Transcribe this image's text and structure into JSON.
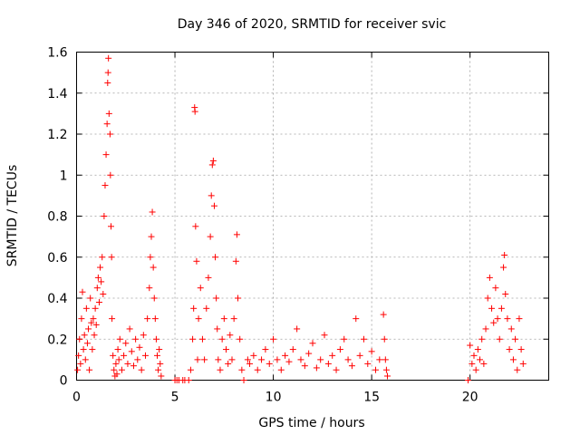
{
  "chart_data": {
    "type": "scatter",
    "title": "Day 346 of 2020, SRMTID for receiver svic",
    "xlabel": "GPS time / hours",
    "ylabel": "SRMTID / TECUs",
    "xlim": [
      0,
      24
    ],
    "ylim": [
      0,
      1.6
    ],
    "xticks": [
      0,
      5,
      10,
      15,
      20
    ],
    "xtick_labels": [
      "0",
      "5",
      "10",
      "15",
      "20"
    ],
    "yticks": [
      0,
      0.2,
      0.4,
      0.6,
      0.8,
      1.0,
      1.2,
      1.4,
      1.6
    ],
    "ytick_labels": [
      "0",
      "0.2",
      "0.4",
      "0.6",
      "0.8",
      "1",
      "1.2",
      "1.4",
      "1.6"
    ],
    "grid": true,
    "marker": "+",
    "marker_color": "#ff0000",
    "series": [
      {
        "name": "SRMTID",
        "points": [
          [
            0.05,
            0.05
          ],
          [
            0.1,
            0.12
          ],
          [
            0.15,
            0.2
          ],
          [
            0.2,
            0.08
          ],
          [
            0.25,
            0.3
          ],
          [
            0.3,
            0.43
          ],
          [
            0.35,
            0.15
          ],
          [
            0.4,
            0.22
          ],
          [
            0.45,
            0.1
          ],
          [
            0.5,
            0.35
          ],
          [
            0.55,
            0.18
          ],
          [
            0.6,
            0.25
          ],
          [
            0.65,
            0.05
          ],
          [
            0.7,
            0.4
          ],
          [
            0.75,
            0.28
          ],
          [
            0.8,
            0.15
          ],
          [
            0.85,
            0.3
          ],
          [
            0.9,
            0.22
          ],
          [
            0.95,
            0.35
          ],
          [
            1.0,
            0.27
          ],
          [
            1.05,
            0.45
          ],
          [
            1.1,
            0.5
          ],
          [
            1.15,
            0.38
          ],
          [
            1.2,
            0.55
          ],
          [
            1.25,
            0.48
          ],
          [
            1.3,
            0.6
          ],
          [
            1.35,
            0.42
          ],
          [
            1.4,
            0.8
          ],
          [
            1.45,
            0.95
          ],
          [
            1.5,
            1.1
          ],
          [
            1.55,
            1.25
          ],
          [
            1.58,
            1.45
          ],
          [
            1.6,
            1.5
          ],
          [
            1.62,
            1.57
          ],
          [
            1.65,
            1.3
          ],
          [
            1.7,
            1.2
          ],
          [
            1.72,
            1.0
          ],
          [
            1.75,
            0.75
          ],
          [
            1.78,
            0.6
          ],
          [
            1.8,
            0.3
          ],
          [
            1.85,
            0.12
          ],
          [
            1.9,
            0.05
          ],
          [
            1.95,
            0.02
          ],
          [
            2.0,
            0.08
          ],
          [
            2.05,
            0.03
          ],
          [
            2.1,
            0.15
          ],
          [
            2.15,
            0.1
          ],
          [
            2.2,
            0.2
          ],
          [
            2.3,
            0.05
          ],
          [
            2.4,
            0.12
          ],
          [
            2.5,
            0.18
          ],
          [
            2.6,
            0.08
          ],
          [
            2.7,
            0.25
          ],
          [
            2.8,
            0.14
          ],
          [
            2.9,
            0.07
          ],
          [
            3.0,
            0.2
          ],
          [
            3.1,
            0.1
          ],
          [
            3.2,
            0.16
          ],
          [
            3.3,
            0.05
          ],
          [
            3.4,
            0.22
          ],
          [
            3.5,
            0.12
          ],
          [
            3.6,
            0.3
          ],
          [
            3.7,
            0.45
          ],
          [
            3.75,
            0.6
          ],
          [
            3.8,
            0.7
          ],
          [
            3.85,
            0.82
          ],
          [
            3.9,
            0.55
          ],
          [
            3.95,
            0.4
          ],
          [
            4.0,
            0.3
          ],
          [
            4.05,
            0.2
          ],
          [
            4.1,
            0.12
          ],
          [
            4.15,
            0.05
          ],
          [
            4.2,
            0.15
          ],
          [
            4.25,
            0.08
          ],
          [
            4.3,
            0.02
          ],
          [
            5.0,
            0.0
          ],
          [
            5.1,
            0.0
          ],
          [
            5.2,
            0.0
          ],
          [
            5.4,
            0.0
          ],
          [
            5.5,
            0.0
          ],
          [
            5.7,
            0.0
          ],
          [
            5.8,
            0.05
          ],
          [
            5.9,
            0.2
          ],
          [
            5.95,
            0.35
          ],
          [
            6.0,
            1.33
          ],
          [
            6.02,
            1.31
          ],
          [
            6.05,
            0.75
          ],
          [
            6.1,
            0.58
          ],
          [
            6.15,
            0.1
          ],
          [
            6.2,
            0.3
          ],
          [
            6.3,
            0.45
          ],
          [
            6.4,
            0.2
          ],
          [
            6.5,
            0.1
          ],
          [
            6.6,
            0.35
          ],
          [
            6.7,
            0.5
          ],
          [
            6.8,
            0.7
          ],
          [
            6.85,
            0.9
          ],
          [
            6.9,
            1.05
          ],
          [
            6.95,
            1.07
          ],
          [
            7.0,
            0.85
          ],
          [
            7.05,
            0.6
          ],
          [
            7.1,
            0.4
          ],
          [
            7.15,
            0.25
          ],
          [
            7.2,
            0.1
          ],
          [
            7.3,
            0.05
          ],
          [
            7.4,
            0.2
          ],
          [
            7.5,
            0.3
          ],
          [
            7.6,
            0.15
          ],
          [
            7.7,
            0.08
          ],
          [
            7.8,
            0.22
          ],
          [
            7.9,
            0.1
          ],
          [
            8.0,
            0.3
          ],
          [
            8.1,
            0.58
          ],
          [
            8.15,
            0.71
          ],
          [
            8.2,
            0.4
          ],
          [
            8.3,
            0.2
          ],
          [
            8.4,
            0.05
          ],
          [
            8.5,
            0.0
          ],
          [
            8.7,
            0.1
          ],
          [
            8.8,
            0.08
          ],
          [
            9.0,
            0.12
          ],
          [
            9.2,
            0.05
          ],
          [
            9.4,
            0.1
          ],
          [
            9.6,
            0.15
          ],
          [
            9.8,
            0.08
          ],
          [
            10.0,
            0.2
          ],
          [
            10.2,
            0.1
          ],
          [
            10.4,
            0.05
          ],
          [
            10.6,
            0.12
          ],
          [
            10.8,
            0.09
          ],
          [
            11.0,
            0.15
          ],
          [
            11.2,
            0.25
          ],
          [
            11.4,
            0.1
          ],
          [
            11.6,
            0.07
          ],
          [
            11.8,
            0.13
          ],
          [
            12.0,
            0.18
          ],
          [
            12.2,
            0.06
          ],
          [
            12.4,
            0.1
          ],
          [
            12.6,
            0.22
          ],
          [
            12.8,
            0.08
          ],
          [
            13.0,
            0.12
          ],
          [
            13.2,
            0.05
          ],
          [
            13.4,
            0.15
          ],
          [
            13.6,
            0.2
          ],
          [
            13.8,
            0.1
          ],
          [
            14.0,
            0.07
          ],
          [
            14.2,
            0.3
          ],
          [
            14.4,
            0.12
          ],
          [
            14.6,
            0.2
          ],
          [
            14.8,
            0.08
          ],
          [
            15.0,
            0.14
          ],
          [
            15.2,
            0.05
          ],
          [
            15.4,
            0.1
          ],
          [
            15.6,
            0.32
          ],
          [
            15.65,
            0.2
          ],
          [
            15.7,
            0.1
          ],
          [
            15.75,
            0.05
          ],
          [
            15.8,
            0.02
          ],
          [
            19.9,
            0.0
          ],
          [
            20.0,
            0.17
          ],
          [
            20.1,
            0.08
          ],
          [
            20.2,
            0.12
          ],
          [
            20.3,
            0.05
          ],
          [
            20.4,
            0.15
          ],
          [
            20.5,
            0.1
          ],
          [
            20.6,
            0.2
          ],
          [
            20.7,
            0.08
          ],
          [
            20.8,
            0.25
          ],
          [
            20.9,
            0.4
          ],
          [
            21.0,
            0.5
          ],
          [
            21.1,
            0.35
          ],
          [
            21.2,
            0.28
          ],
          [
            21.3,
            0.45
          ],
          [
            21.4,
            0.3
          ],
          [
            21.5,
            0.2
          ],
          [
            21.6,
            0.35
          ],
          [
            21.7,
            0.55
          ],
          [
            21.75,
            0.61
          ],
          [
            21.8,
            0.42
          ],
          [
            21.9,
            0.3
          ],
          [
            22.0,
            0.15
          ],
          [
            22.1,
            0.25
          ],
          [
            22.2,
            0.1
          ],
          [
            22.3,
            0.2
          ],
          [
            22.4,
            0.05
          ],
          [
            22.5,
            0.3
          ],
          [
            22.6,
            0.15
          ],
          [
            22.7,
            0.08
          ]
        ]
      }
    ]
  }
}
